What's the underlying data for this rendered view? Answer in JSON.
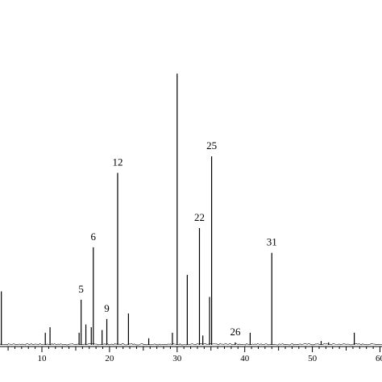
{
  "chart_data": {
    "type": "line",
    "title": "",
    "xlabel": "",
    "ylabel": "",
    "xlim": [
      3.8,
      60.3
    ],
    "ylim": [
      0,
      100
    ],
    "grid": false,
    "x_ticks": [
      10,
      20,
      30,
      40,
      50,
      60
    ],
    "x_tick_labels": [
      "10",
      "20",
      "30",
      "40",
      "50",
      "60"
    ],
    "series": [
      {
        "peaks": [
          {
            "x": 4.0,
            "y": 20
          },
          {
            "x": 10.5,
            "y": 5
          },
          {
            "x": 11.2,
            "y": 7
          },
          {
            "x": 15.5,
            "y": 5
          },
          {
            "x": 15.8,
            "y": 17
          },
          {
            "x": 16.5,
            "y": 8
          },
          {
            "x": 17.3,
            "y": 7
          },
          {
            "x": 17.6,
            "y": 36
          },
          {
            "x": 18.9,
            "y": 6
          },
          {
            "x": 19.6,
            "y": 10
          },
          {
            "x": 21.2,
            "y": 63
          },
          {
            "x": 22.8,
            "y": 12
          },
          {
            "x": 25.8,
            "y": 3
          },
          {
            "x": 29.3,
            "y": 5
          },
          {
            "x": 30.0,
            "y": 99
          },
          {
            "x": 31.5,
            "y": 26
          },
          {
            "x": 33.3,
            "y": 43
          },
          {
            "x": 33.8,
            "y": 4
          },
          {
            "x": 34.8,
            "y": 18
          },
          {
            "x": 35.1,
            "y": 69
          },
          {
            "x": 38.6,
            "y": 1.5
          },
          {
            "x": 40.8,
            "y": 5
          },
          {
            "x": 44.0,
            "y": 34
          },
          {
            "x": 51.3,
            "y": 2
          },
          {
            "x": 52.4,
            "y": 1.5
          },
          {
            "x": 56.2,
            "y": 5
          }
        ]
      }
    ],
    "annotations": [
      {
        "text": "5",
        "x": 15.8
      },
      {
        "text": "6",
        "x": 17.6
      },
      {
        "text": "9",
        "x": 19.6
      },
      {
        "text": "12",
        "x": 21.2
      },
      {
        "text": "22",
        "x": 33.3
      },
      {
        "text": "25",
        "x": 35.1
      },
      {
        "text": "26",
        "x": 38.6
      },
      {
        "text": "31",
        "x": 44.0
      }
    ]
  }
}
